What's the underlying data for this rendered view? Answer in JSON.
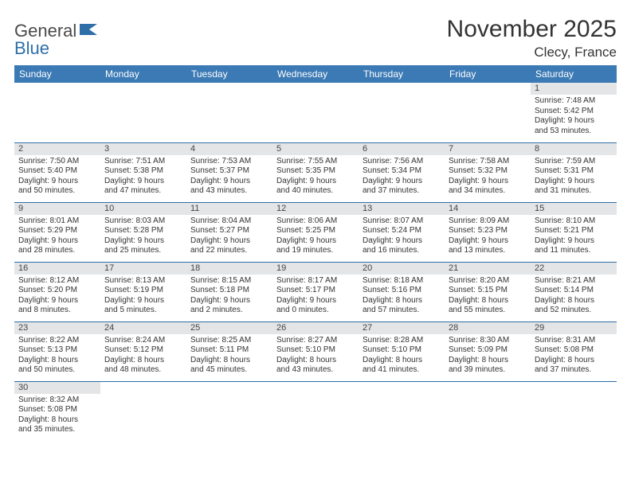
{
  "logo": {
    "text1": "General",
    "text2": "Blue"
  },
  "title": "November 2025",
  "location": "Clecy, France",
  "colors": {
    "header_bg": "#3b7ab5",
    "header_text": "#ffffff",
    "daynum_bg": "#e3e5e7",
    "row_border": "#2f6fa8",
    "logo_blue": "#2f6fa8",
    "body_text": "#333333"
  },
  "weekdays": [
    "Sunday",
    "Monday",
    "Tuesday",
    "Wednesday",
    "Thursday",
    "Friday",
    "Saturday"
  ],
  "weeks": [
    [
      null,
      null,
      null,
      null,
      null,
      null,
      {
        "n": "1",
        "sr": "Sunrise: 7:48 AM",
        "ss": "Sunset: 5:42 PM",
        "d1": "Daylight: 9 hours",
        "d2": "and 53 minutes."
      }
    ],
    [
      {
        "n": "2",
        "sr": "Sunrise: 7:50 AM",
        "ss": "Sunset: 5:40 PM",
        "d1": "Daylight: 9 hours",
        "d2": "and 50 minutes."
      },
      {
        "n": "3",
        "sr": "Sunrise: 7:51 AM",
        "ss": "Sunset: 5:38 PM",
        "d1": "Daylight: 9 hours",
        "d2": "and 47 minutes."
      },
      {
        "n": "4",
        "sr": "Sunrise: 7:53 AM",
        "ss": "Sunset: 5:37 PM",
        "d1": "Daylight: 9 hours",
        "d2": "and 43 minutes."
      },
      {
        "n": "5",
        "sr": "Sunrise: 7:55 AM",
        "ss": "Sunset: 5:35 PM",
        "d1": "Daylight: 9 hours",
        "d2": "and 40 minutes."
      },
      {
        "n": "6",
        "sr": "Sunrise: 7:56 AM",
        "ss": "Sunset: 5:34 PM",
        "d1": "Daylight: 9 hours",
        "d2": "and 37 minutes."
      },
      {
        "n": "7",
        "sr": "Sunrise: 7:58 AM",
        "ss": "Sunset: 5:32 PM",
        "d1": "Daylight: 9 hours",
        "d2": "and 34 minutes."
      },
      {
        "n": "8",
        "sr": "Sunrise: 7:59 AM",
        "ss": "Sunset: 5:31 PM",
        "d1": "Daylight: 9 hours",
        "d2": "and 31 minutes."
      }
    ],
    [
      {
        "n": "9",
        "sr": "Sunrise: 8:01 AM",
        "ss": "Sunset: 5:29 PM",
        "d1": "Daylight: 9 hours",
        "d2": "and 28 minutes."
      },
      {
        "n": "10",
        "sr": "Sunrise: 8:03 AM",
        "ss": "Sunset: 5:28 PM",
        "d1": "Daylight: 9 hours",
        "d2": "and 25 minutes."
      },
      {
        "n": "11",
        "sr": "Sunrise: 8:04 AM",
        "ss": "Sunset: 5:27 PM",
        "d1": "Daylight: 9 hours",
        "d2": "and 22 minutes."
      },
      {
        "n": "12",
        "sr": "Sunrise: 8:06 AM",
        "ss": "Sunset: 5:25 PM",
        "d1": "Daylight: 9 hours",
        "d2": "and 19 minutes."
      },
      {
        "n": "13",
        "sr": "Sunrise: 8:07 AM",
        "ss": "Sunset: 5:24 PM",
        "d1": "Daylight: 9 hours",
        "d2": "and 16 minutes."
      },
      {
        "n": "14",
        "sr": "Sunrise: 8:09 AM",
        "ss": "Sunset: 5:23 PM",
        "d1": "Daylight: 9 hours",
        "d2": "and 13 minutes."
      },
      {
        "n": "15",
        "sr": "Sunrise: 8:10 AM",
        "ss": "Sunset: 5:21 PM",
        "d1": "Daylight: 9 hours",
        "d2": "and 11 minutes."
      }
    ],
    [
      {
        "n": "16",
        "sr": "Sunrise: 8:12 AM",
        "ss": "Sunset: 5:20 PM",
        "d1": "Daylight: 9 hours",
        "d2": "and 8 minutes."
      },
      {
        "n": "17",
        "sr": "Sunrise: 8:13 AM",
        "ss": "Sunset: 5:19 PM",
        "d1": "Daylight: 9 hours",
        "d2": "and 5 minutes."
      },
      {
        "n": "18",
        "sr": "Sunrise: 8:15 AM",
        "ss": "Sunset: 5:18 PM",
        "d1": "Daylight: 9 hours",
        "d2": "and 2 minutes."
      },
      {
        "n": "19",
        "sr": "Sunrise: 8:17 AM",
        "ss": "Sunset: 5:17 PM",
        "d1": "Daylight: 9 hours",
        "d2": "and 0 minutes."
      },
      {
        "n": "20",
        "sr": "Sunrise: 8:18 AM",
        "ss": "Sunset: 5:16 PM",
        "d1": "Daylight: 8 hours",
        "d2": "and 57 minutes."
      },
      {
        "n": "21",
        "sr": "Sunrise: 8:20 AM",
        "ss": "Sunset: 5:15 PM",
        "d1": "Daylight: 8 hours",
        "d2": "and 55 minutes."
      },
      {
        "n": "22",
        "sr": "Sunrise: 8:21 AM",
        "ss": "Sunset: 5:14 PM",
        "d1": "Daylight: 8 hours",
        "d2": "and 52 minutes."
      }
    ],
    [
      {
        "n": "23",
        "sr": "Sunrise: 8:22 AM",
        "ss": "Sunset: 5:13 PM",
        "d1": "Daylight: 8 hours",
        "d2": "and 50 minutes."
      },
      {
        "n": "24",
        "sr": "Sunrise: 8:24 AM",
        "ss": "Sunset: 5:12 PM",
        "d1": "Daylight: 8 hours",
        "d2": "and 48 minutes."
      },
      {
        "n": "25",
        "sr": "Sunrise: 8:25 AM",
        "ss": "Sunset: 5:11 PM",
        "d1": "Daylight: 8 hours",
        "d2": "and 45 minutes."
      },
      {
        "n": "26",
        "sr": "Sunrise: 8:27 AM",
        "ss": "Sunset: 5:10 PM",
        "d1": "Daylight: 8 hours",
        "d2": "and 43 minutes."
      },
      {
        "n": "27",
        "sr": "Sunrise: 8:28 AM",
        "ss": "Sunset: 5:10 PM",
        "d1": "Daylight: 8 hours",
        "d2": "and 41 minutes."
      },
      {
        "n": "28",
        "sr": "Sunrise: 8:30 AM",
        "ss": "Sunset: 5:09 PM",
        "d1": "Daylight: 8 hours",
        "d2": "and 39 minutes."
      },
      {
        "n": "29",
        "sr": "Sunrise: 8:31 AM",
        "ss": "Sunset: 5:08 PM",
        "d1": "Daylight: 8 hours",
        "d2": "and 37 minutes."
      }
    ],
    [
      {
        "n": "30",
        "sr": "Sunrise: 8:32 AM",
        "ss": "Sunset: 5:08 PM",
        "d1": "Daylight: 8 hours",
        "d2": "and 35 minutes."
      },
      null,
      null,
      null,
      null,
      null,
      null
    ]
  ]
}
